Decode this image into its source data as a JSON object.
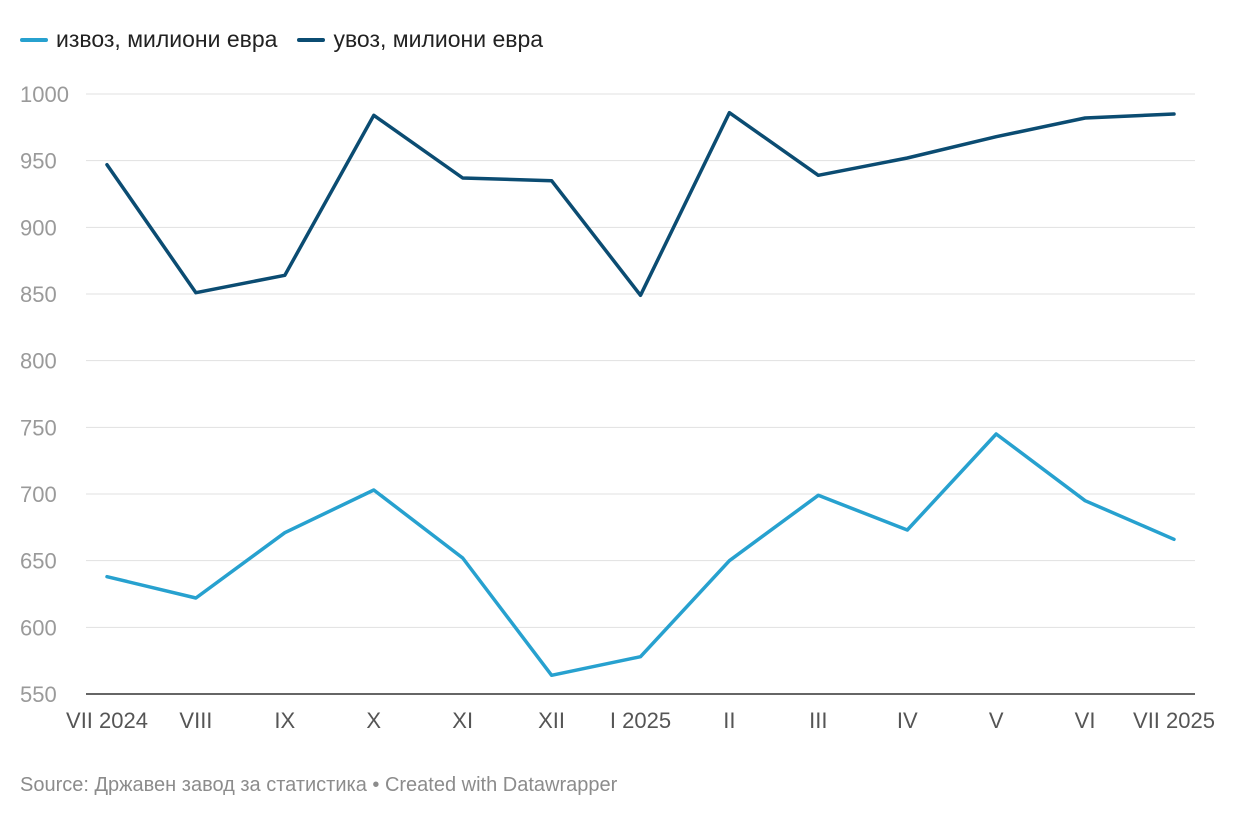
{
  "chart_data": {
    "type": "line",
    "categories": [
      "VII 2024",
      "VIII",
      "IX",
      "X",
      "XI",
      "XII",
      "I 2025",
      "II",
      "III",
      "IV",
      "V",
      "VI",
      "VII 2025"
    ],
    "series": [
      {
        "name": "извоз, милиони евра",
        "color": "#27a1cf",
        "values": [
          638,
          622,
          671,
          703,
          652,
          564,
          578,
          650,
          699,
          673,
          745,
          695,
          666
        ]
      },
      {
        "name": "увоз, милиони евра",
        "color": "#0b4c72",
        "values": [
          947,
          851,
          864,
          984,
          937,
          935,
          849,
          986,
          939,
          952,
          968,
          982,
          985
        ]
      }
    ],
    "ylim": [
      550,
      1000
    ],
    "yticks": [
      550,
      600,
      650,
      700,
      750,
      800,
      850,
      900,
      950,
      1000
    ],
    "grid": true,
    "legend_position": "top-left"
  },
  "footer": {
    "text": "Source: Државен завод за статистика • Created with Datawrapper"
  }
}
